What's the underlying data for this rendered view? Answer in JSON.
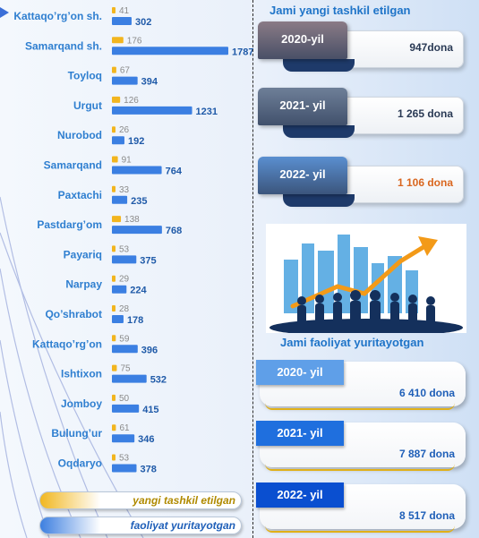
{
  "chart_data": {
    "type": "bar",
    "orientation": "horizontal",
    "categories": [
      "Kattaqo’rg’on sh.",
      "Samarqand sh.",
      "Toyloq",
      "Urgut",
      "Nurobod",
      "Samarqand",
      "Paxtachi",
      "Pastdarg’om",
      "Payariq",
      "Narpay",
      "Qo’shrabot",
      "Kattaqo’rg’on",
      "Ishtixon",
      "Jomboy",
      "Bulung’ur",
      "Oqdaryo"
    ],
    "series": [
      {
        "name": "yangi tashkil etilgan",
        "color": "#f2b51f",
        "values": [
          41,
          176,
          67,
          126,
          26,
          91,
          33,
          138,
          53,
          29,
          28,
          59,
          75,
          50,
          61,
          53
        ]
      },
      {
        "name": "faoliyat yuritayotgan",
        "color": "#3b7fe2",
        "values": [
          302,
          1787,
          394,
          1231,
          192,
          764,
          235,
          768,
          375,
          224,
          178,
          396,
          532,
          415,
          346,
          378
        ]
      }
    ],
    "legend_position": "bottom-left"
  },
  "legend": {
    "new_label": "yangi tashkil etilgan",
    "active_label": "faoliyat yuritayotgan"
  },
  "top_section": {
    "title": "Jami yangi tashkil etilgan",
    "cards": [
      {
        "year": "2020-yil",
        "value": "947dona",
        "tab_color": "#8a7b86"
      },
      {
        "year": "2021- yil",
        "value": "1 265 dona",
        "tab_color": "#6e7f98"
      },
      {
        "year": "2022- yil",
        "value": "1 106 dona",
        "tab_color": "#5a8fd0",
        "value_color": "#d9661f"
      }
    ]
  },
  "bottom_section": {
    "title": "Jami faoliyat yuritayotgan",
    "cards": [
      {
        "year": "2020- yil",
        "value": "6 410 dona",
        "tab_color": "#5f9fe8"
      },
      {
        "year": "2021- yil",
        "value": "7 887 dona",
        "tab_color": "#1f6fde"
      },
      {
        "year": "2022- yil",
        "value": "8 517 dona",
        "tab_color": "#0a4fd0"
      }
    ]
  }
}
